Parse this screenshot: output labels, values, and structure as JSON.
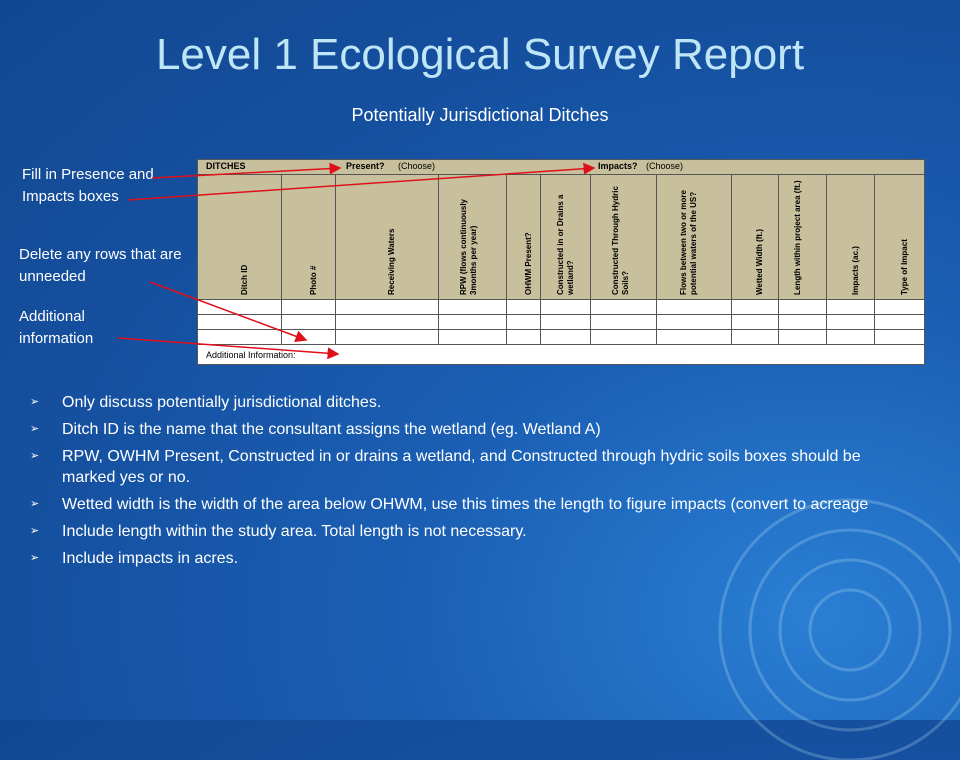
{
  "title": "Level 1 Ecological Survey Report",
  "subtitle": "Potentially Jurisdictional Ditches",
  "callouts": {
    "fill_in": "Fill in Presence and Impacts boxes",
    "delete_rows": "Delete any rows that are unneeded",
    "additional": "Additional information"
  },
  "form": {
    "ditches_label": "DITCHES",
    "present_label": "Present?",
    "present_choose": "(Choose)",
    "impacts_label": "Impacts?",
    "impacts_choose": "(Choose)",
    "columns": [
      "Ditch ID",
      "Photo #",
      "Receiving Waters",
      "RPW (flows continuously 3months per year)",
      "OHWM Present?",
      "Constructed in or Drains a wetland?",
      "Constructed Through Hydric Soils?",
      "Flows between two or more potential waters of the US?",
      "Wetted Width (ft.)",
      "Length within project area (ft.)",
      "Impacts (ac.)",
      "Type of Impact"
    ],
    "additional_label": "Additional Information:"
  },
  "bullets": [
    "Only discuss potentially jurisdictional ditches.",
    "Ditch ID is the name that the consultant assigns the wetland (eg. Wetland A)",
    "RPW, OWHM Present, Constructed in or drains a wetland, and Constructed through hydric soils boxes should be marked yes or no.",
    "Wetted width is the width of the area below OHWM, use this times the length to figure impacts (convert to acreage",
    "Include length within the study area.  Total length is not necessary.",
    "Include impacts in acres."
  ],
  "icons": {
    "bullet": "arrow-bullet-icon"
  }
}
